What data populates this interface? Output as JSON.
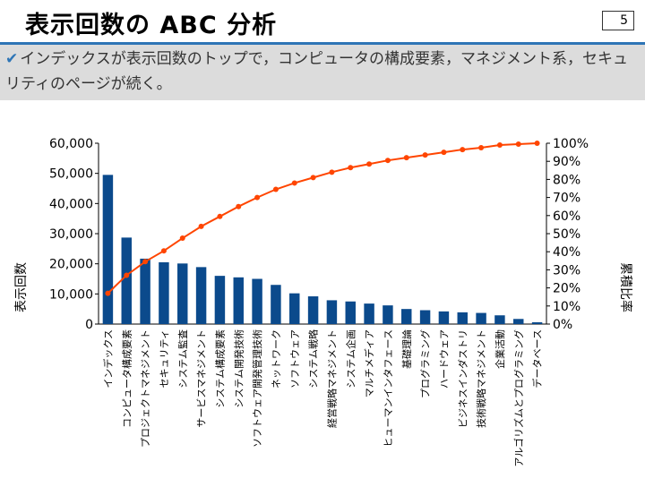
{
  "slide": {
    "title": "表示回数の ABC 分析",
    "page_number": "5",
    "bullet": "インデックスが表示回数のトップで，コンピュータの構成要素，マネジメント系，セキュリティのページが続く。"
  },
  "colors": {
    "bar": "#0b4a8c",
    "line": "#ff4500",
    "accent": "#2e75b6"
  },
  "chart_data": {
    "type": "bar",
    "categories": [
      "インデックス",
      "コンピュータ構成要素",
      "プロジェクトマネジメント",
      "セキュリティ",
      "システム監査",
      "サービスマネジメント",
      "システム構成要素",
      "システム開発技術",
      "ソフトウェア開発管理技術",
      "ネットワーク",
      "ソフトウェア",
      "システム戦略",
      "経営戦略マネジメント",
      "システム企画",
      "マルチメディア",
      "ヒューマンインタフェース",
      "基礎理論",
      "プログラミング",
      "ハードウェア",
      "ビジネスインダストリ",
      "技術戦略マネジメント",
      "企業活動",
      "アルゴリズムとプログラミング",
      "データベース"
    ],
    "series": [
      {
        "type": "bar",
        "axis": "left",
        "values": [
          49500,
          28700,
          21700,
          20500,
          20100,
          18900,
          16000,
          15500,
          15000,
          13000,
          10200,
          9200,
          7900,
          7500,
          6800,
          6200,
          5000,
          4600,
          4200,
          3900,
          3700,
          2900,
          1700,
          600
        ]
      },
      {
        "type": "line",
        "axis": "right",
        "values": [
          0.17,
          0.27,
          0.345,
          0.405,
          0.475,
          0.54,
          0.595,
          0.65,
          0.7,
          0.745,
          0.78,
          0.81,
          0.84,
          0.865,
          0.885,
          0.905,
          0.92,
          0.935,
          0.95,
          0.965,
          0.975,
          0.99,
          0.995,
          1.0
        ]
      }
    ],
    "ylabel": "表示回数",
    "y2label": "累積比率",
    "ylim": [
      0,
      60000
    ],
    "y2lim": [
      0,
      1
    ],
    "y_ticks": [
      "0",
      "10,000",
      "20,000",
      "30,000",
      "40,000",
      "50,000",
      "60,000"
    ],
    "y2_ticks": [
      "0%",
      "10%",
      "20%",
      "30%",
      "40%",
      "50%",
      "60%",
      "70%",
      "80%",
      "90%",
      "100%"
    ],
    "grid": false,
    "legend": "none"
  }
}
